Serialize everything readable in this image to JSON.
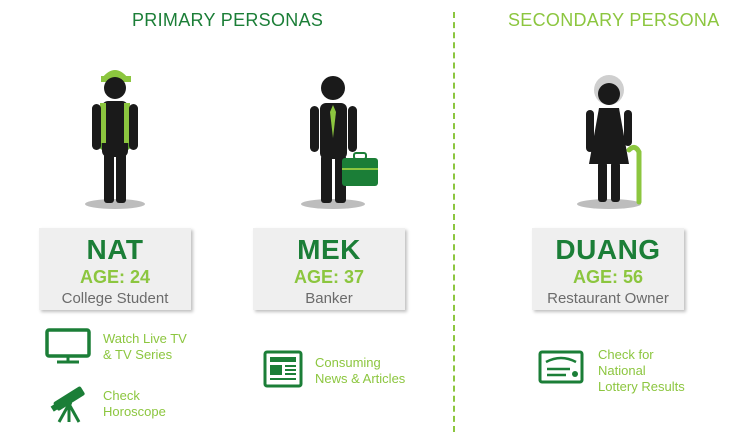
{
  "primary": {
    "title": "PRIMARY PERSONAS",
    "personas": [
      {
        "name": "NAT",
        "age": "AGE: 24",
        "occupation": "College Student",
        "activities": [
          {
            "icon": "tv-icon",
            "line1": "Watch Live TV",
            "line2": "& TV Series"
          },
          {
            "icon": "telescope-icon",
            "line1": "Check",
            "line2": "Horoscope"
          }
        ]
      },
      {
        "name": "MEK",
        "age": "AGE: 37",
        "occupation": "Banker",
        "activities": [
          {
            "icon": "newspaper-icon",
            "line1": "Consuming",
            "line2": "News & Articles"
          }
        ]
      }
    ]
  },
  "secondary": {
    "title": "SECONDARY PERSONA",
    "personas": [
      {
        "name": "DUANG",
        "age": "AGE: 56",
        "occupation": "Restaurant Owner",
        "activities": [
          {
            "icon": "lottery-ticket-icon",
            "line1": "Check for",
            "line2": "National",
            "line3": "Lottery Results"
          }
        ]
      }
    ]
  },
  "colors": {
    "dark_green": "#1b7e37",
    "light_green": "#8cc63f",
    "figure_black": "#1a1a1a",
    "card_bg": "#efefef",
    "occupation_gray": "#6b6b6b"
  }
}
